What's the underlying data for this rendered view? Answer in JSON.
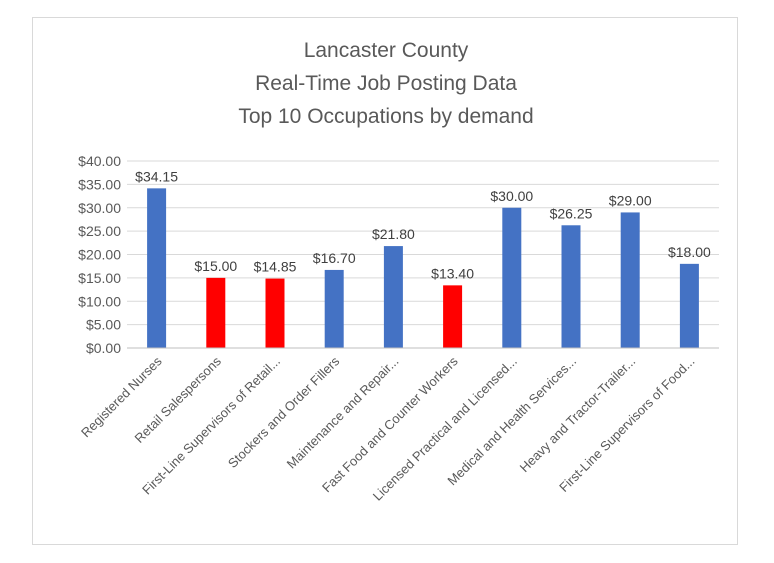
{
  "chart_data": {
    "type": "bar",
    "title_lines": [
      "Lancaster County",
      "Real-Time Job Posting Data",
      "Top 10 Occupations by demand"
    ],
    "categories": [
      "Registered Nurses",
      "Retail Salespersons",
      "First-Line Supervisors of Retail...",
      "Stockers and Order Fillers",
      "Maintenance and Repair...",
      "Fast Food and Counter Workers",
      "Licensed Practical and Licensed...",
      "Medical and Health Services...",
      "Heavy and Tractor-Trailer...",
      "First-Line Supervisors of Food..."
    ],
    "values": [
      34.15,
      15.0,
      14.85,
      16.7,
      21.8,
      13.4,
      30.0,
      26.25,
      29.0,
      18.0
    ],
    "data_labels": [
      "$34.15",
      "$15.00",
      "$14.85",
      "$16.70",
      "$21.80",
      "$13.40",
      "$30.00",
      "$26.25",
      "$29.00",
      "$18.00"
    ],
    "bar_colors": [
      "#4472c4",
      "#ff0000",
      "#ff0000",
      "#4472c4",
      "#4472c4",
      "#ff0000",
      "#4472c4",
      "#4472c4",
      "#4472c4",
      "#4472c4"
    ],
    "y_ticks": [
      0,
      5,
      10,
      15,
      20,
      25,
      30,
      35,
      40
    ],
    "y_tick_labels": [
      "$0.00",
      "$5.00",
      "$10.00",
      "$15.00",
      "$20.00",
      "$25.00",
      "$30.00",
      "$35.00",
      "$40.00"
    ],
    "ylim": [
      0,
      40
    ],
    "xlabel": "",
    "ylabel": "",
    "grid": true,
    "legend": "none"
  }
}
